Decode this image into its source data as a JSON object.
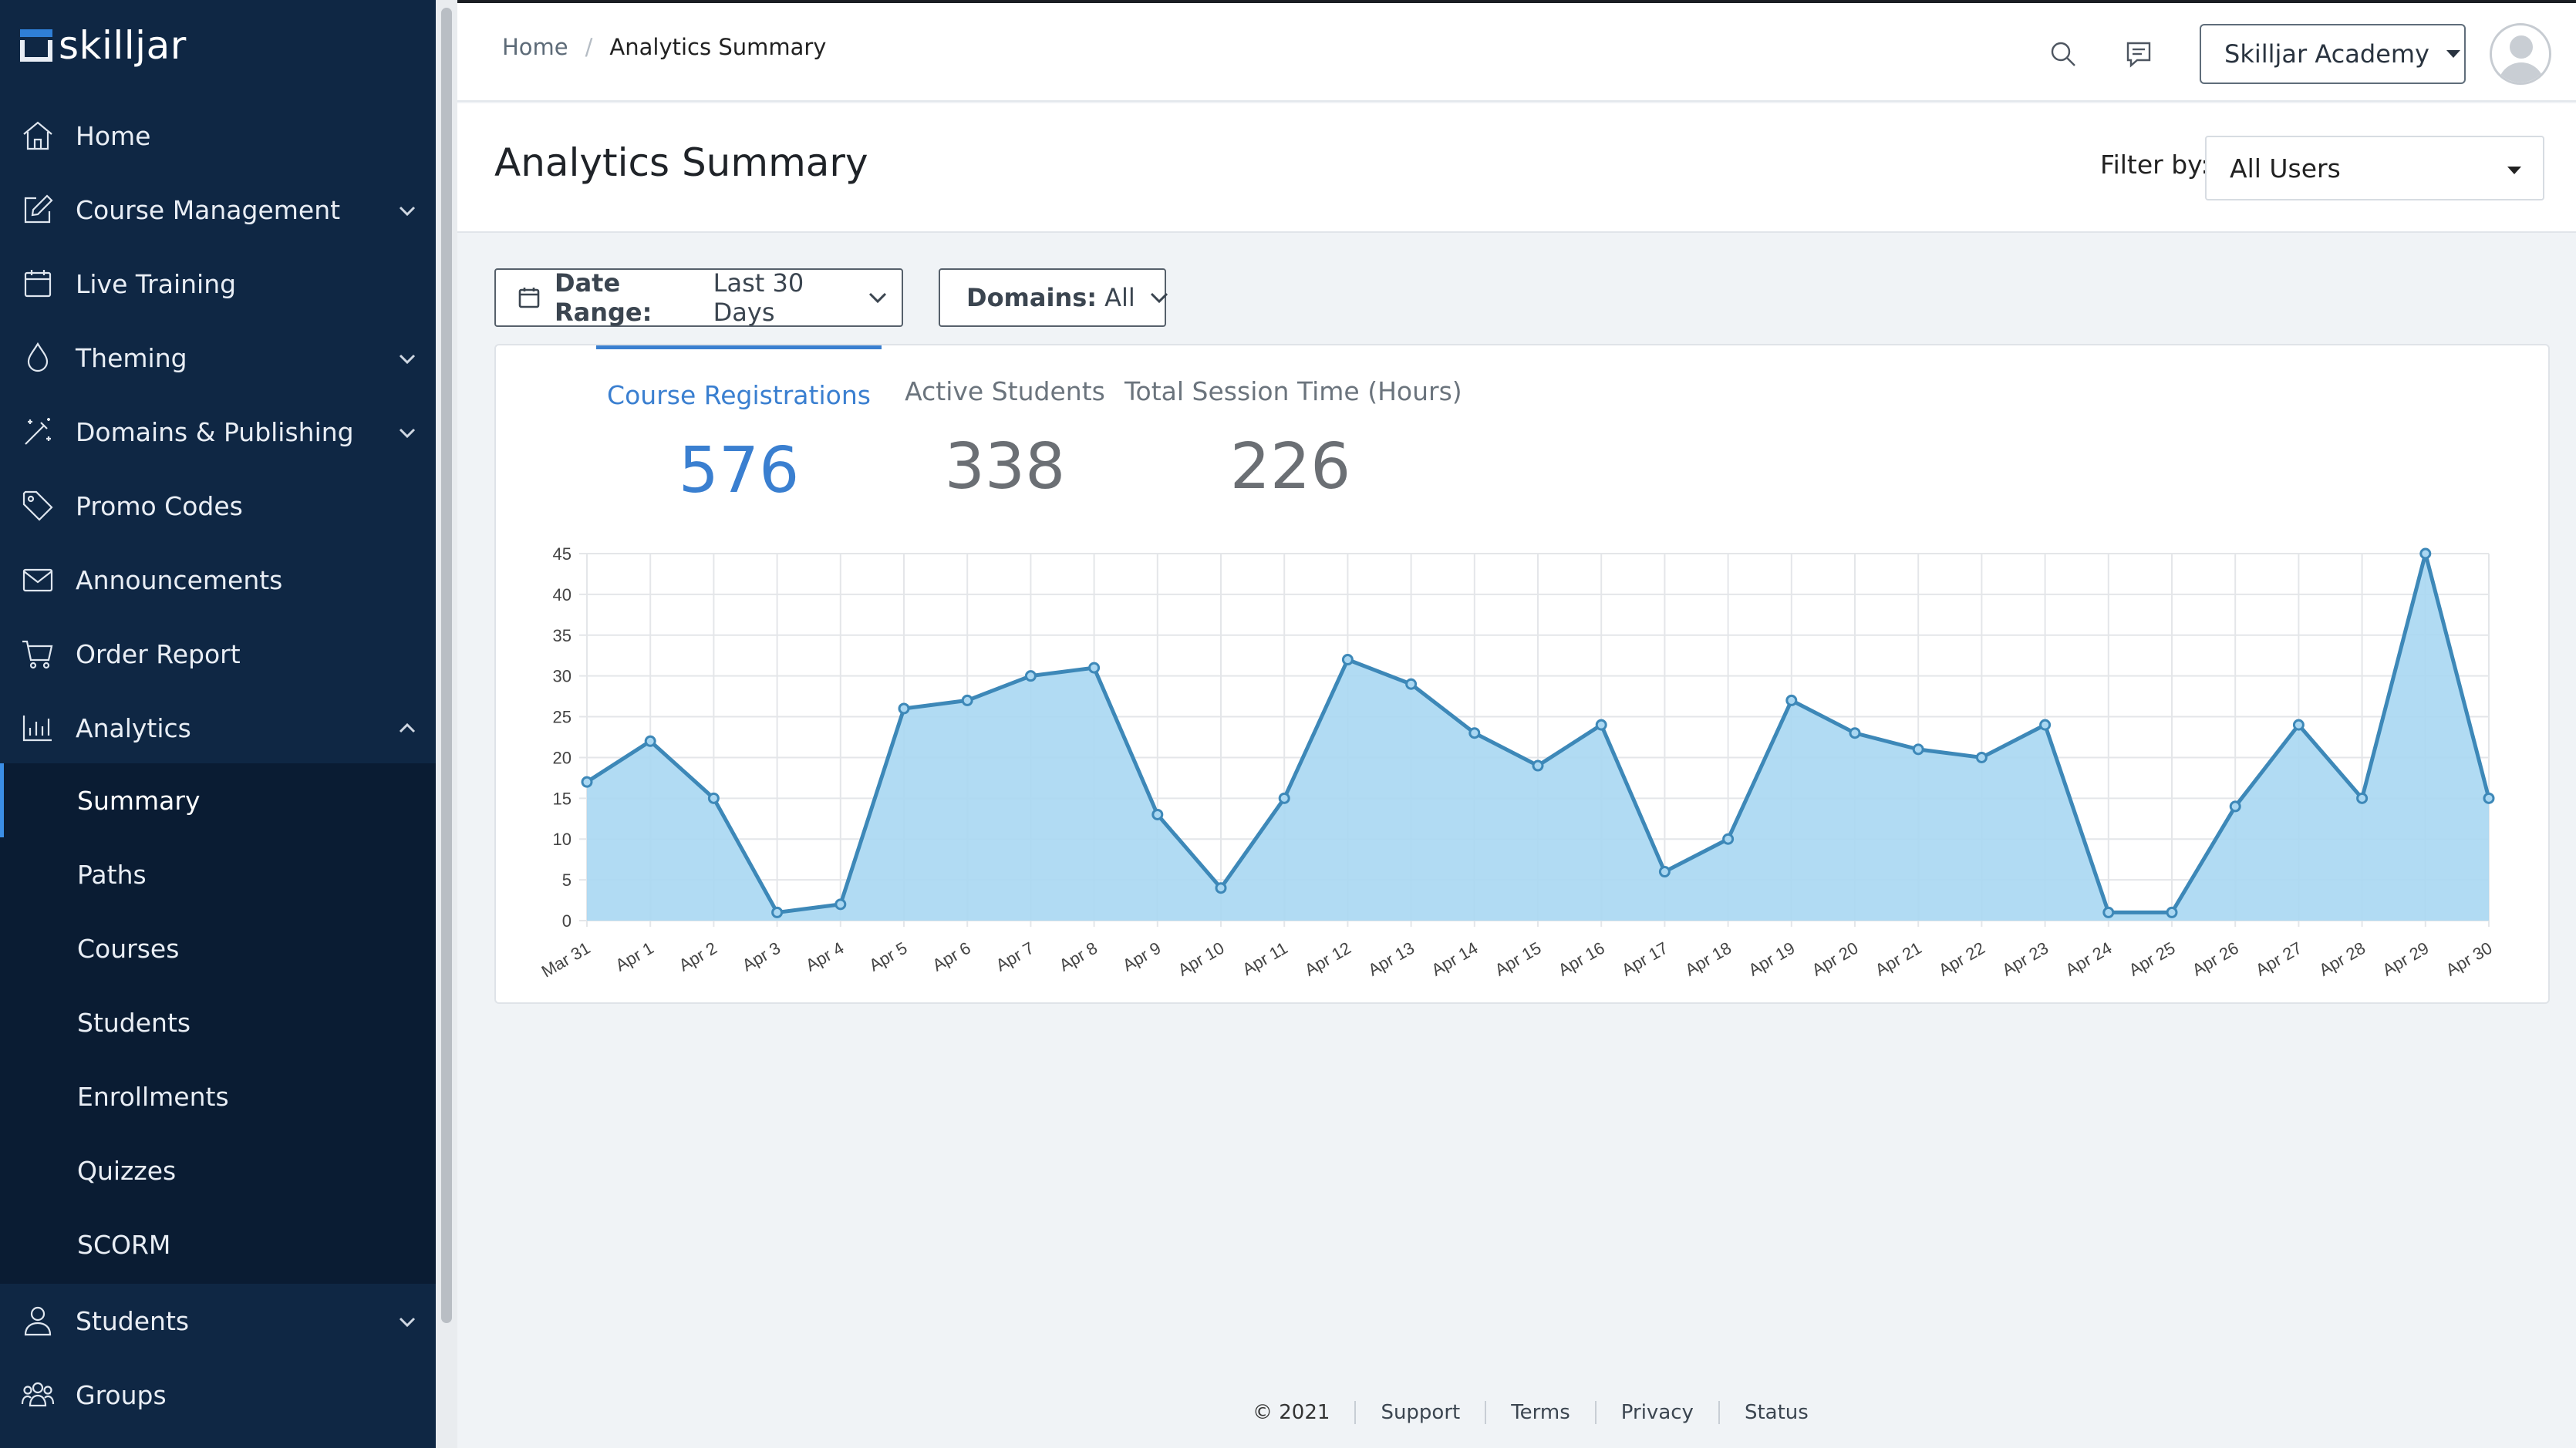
{
  "sidebar": {
    "brand": "skilljar",
    "items": [
      {
        "label": "Home",
        "icon": "home-icon",
        "chevron": false
      },
      {
        "label": "Course Management",
        "icon": "edit-icon",
        "chevron": true
      },
      {
        "label": "Live Training",
        "icon": "calendar-icon",
        "chevron": false
      },
      {
        "label": "Theming",
        "icon": "droplet-icon",
        "chevron": true
      },
      {
        "label": "Domains & Publishing",
        "icon": "magic-wand-icon",
        "chevron": true
      },
      {
        "label": "Promo Codes",
        "icon": "tag-icon",
        "chevron": false
      },
      {
        "label": "Announcements",
        "icon": "mail-icon",
        "chevron": false
      },
      {
        "label": "Order Report",
        "icon": "cart-icon",
        "chevron": false
      },
      {
        "label": "Analytics",
        "icon": "bar-chart-icon",
        "chevron": true,
        "expanded": true
      }
    ],
    "analytics_sub": [
      "Summary",
      "Paths",
      "Courses",
      "Students",
      "Enrollments",
      "Quizzes",
      "SCORM"
    ],
    "active_sub": "Summary",
    "bottom_items": [
      {
        "label": "Students",
        "icon": "user-icon",
        "chevron": true
      },
      {
        "label": "Groups",
        "icon": "users-icon",
        "chevron": false
      }
    ]
  },
  "topbar": {
    "breadcrumb": [
      "Home",
      "Analytics Summary"
    ],
    "account_label": "Skilljar Academy"
  },
  "page": {
    "title": "Analytics Summary",
    "filter_label": "Filter by:",
    "filter_value": "All Users"
  },
  "filters": {
    "date_range_label": "Date Range:",
    "date_range_value": "Last 30 Days",
    "domains_label": "Domains:",
    "domains_value": "All"
  },
  "tabs": [
    {
      "label": "Course Registrations",
      "value": "576",
      "active": true
    },
    {
      "label": "Active Students",
      "value": "338",
      "active": false
    },
    {
      "label": "Total Session Time (Hours)",
      "value": "226",
      "active": false
    }
  ],
  "chart_data": {
    "type": "area",
    "title": "",
    "xlabel": "",
    "ylabel": "",
    "ylim": [
      0,
      45
    ],
    "yticks": [
      0,
      5,
      10,
      15,
      20,
      25,
      30,
      35,
      40,
      45
    ],
    "grid": true,
    "categories": [
      "Mar 31",
      "Apr 1",
      "Apr 2",
      "Apr 3",
      "Apr 4",
      "Apr 5",
      "Apr 6",
      "Apr 7",
      "Apr 8",
      "Apr 9",
      "Apr 10",
      "Apr 11",
      "Apr 12",
      "Apr 13",
      "Apr 14",
      "Apr 15",
      "Apr 16",
      "Apr 17",
      "Apr 18",
      "Apr 19",
      "Apr 20",
      "Apr 21",
      "Apr 22",
      "Apr 23",
      "Apr 24",
      "Apr 25",
      "Apr 26",
      "Apr 27",
      "Apr 28",
      "Apr 29",
      "Apr 30"
    ],
    "series": [
      {
        "values": [
          17,
          22,
          15,
          1,
          2,
          26,
          27,
          30,
          31,
          13,
          4,
          15,
          32,
          29,
          23,
          19,
          24,
          6,
          10,
          27,
          23,
          21,
          20,
          24,
          1,
          1,
          14,
          24,
          15,
          45,
          15
        ]
      }
    ],
    "colors": {
      "line": "#3d88b8",
      "fill": "#a9d7f2",
      "grid": "#e4e6e9"
    }
  },
  "footer": [
    "© 2021",
    "Support",
    "Terms",
    "Privacy",
    "Status"
  ]
}
